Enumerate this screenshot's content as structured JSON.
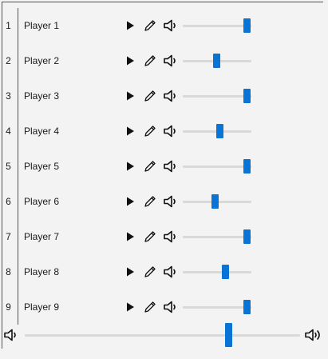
{
  "players": [
    {
      "index": "1",
      "name": "Player 1",
      "volume": 0.93
    },
    {
      "index": "2",
      "name": "Player 2",
      "volume": 0.49
    },
    {
      "index": "3",
      "name": "Player 3",
      "volume": 0.93
    },
    {
      "index": "4",
      "name": "Player 4",
      "volume": 0.54
    },
    {
      "index": "5",
      "name": "Player 5",
      "volume": 0.93
    },
    {
      "index": "6",
      "name": "Player 6",
      "volume": 0.47
    },
    {
      "index": "7",
      "name": "Player 7",
      "volume": 0.93
    },
    {
      "index": "8",
      "name": "Player 8",
      "volume": 0.62
    },
    {
      "index": "9",
      "name": "Player 9",
      "volume": 0.93
    }
  ],
  "master": {
    "volume": 0.74
  },
  "icons": {
    "play": "play-icon",
    "edit": "pencil-icon",
    "volume": "speaker-icon",
    "volume_low": "speaker-low-icon",
    "volume_high": "speaker-high-icon"
  },
  "colors": {
    "accent": "#0a74d6",
    "track": "#d9d9d9",
    "background": "#f3f3f3"
  }
}
